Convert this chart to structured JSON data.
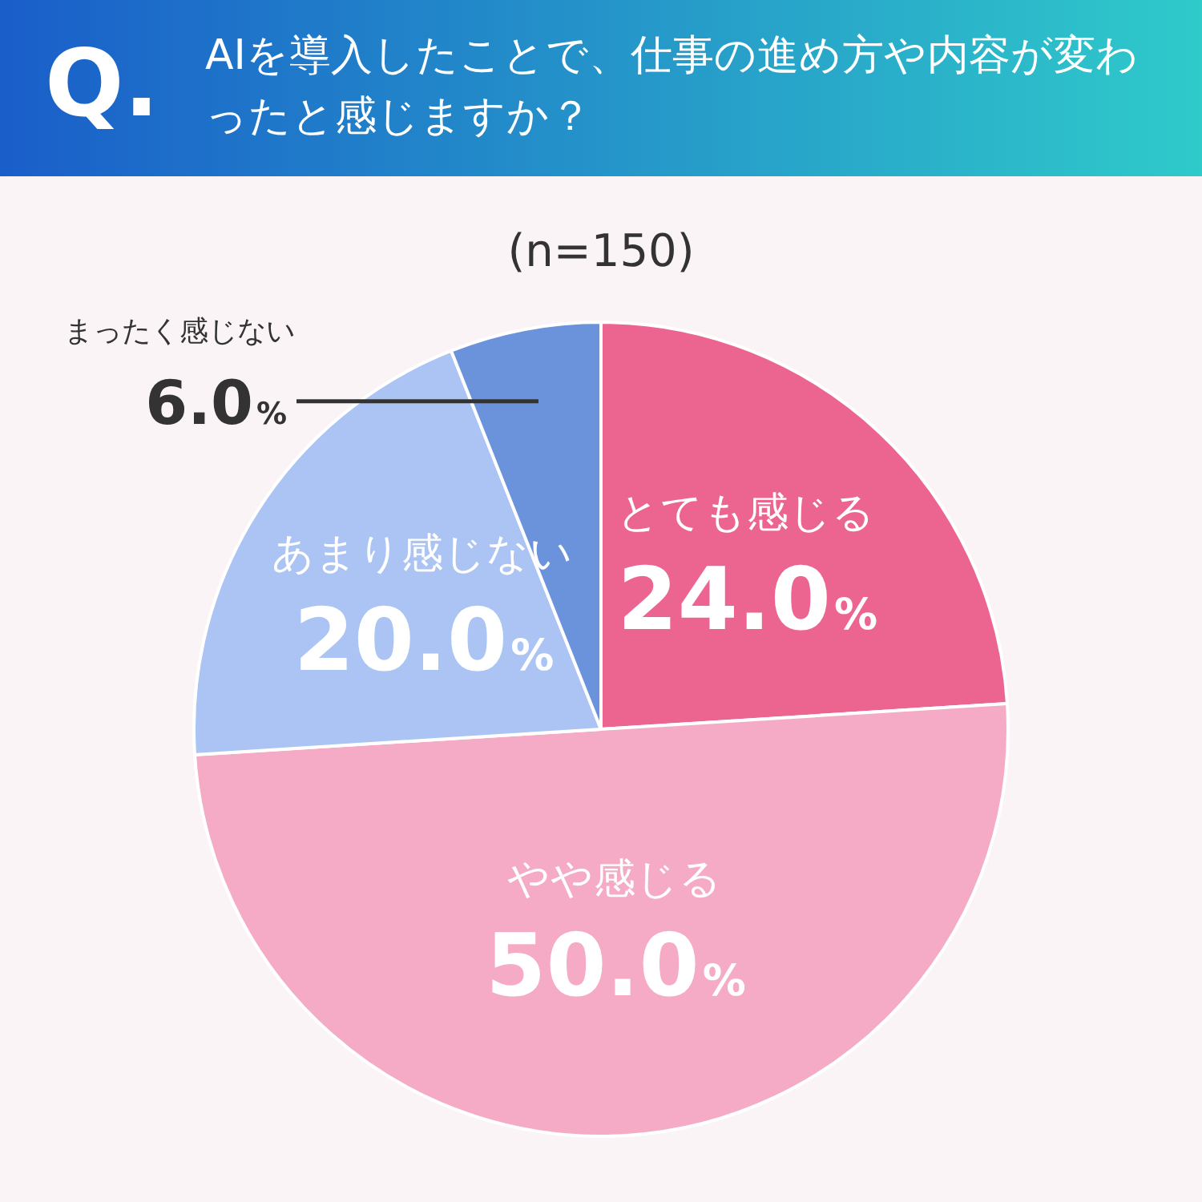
{
  "chart_data": {
    "type": "pie",
    "title": "AIを導入したことで、仕事の進め方や内容が変わったと感じますか？",
    "subtitle": "(n=150)",
    "annotations": [
      "Q."
    ],
    "categories": [
      "とても感じる",
      "やや感じる",
      "あまり感じない",
      "まったく感じない"
    ],
    "values": [
      24.0,
      50.0,
      20.0,
      6.0
    ],
    "colors": [
      "#ec6591",
      "#f5abc5",
      "#abc4f3",
      "#6a93dc"
    ],
    "value_labels": [
      "24.0%",
      "50.0%",
      "20.0%",
      "6.0%"
    ],
    "legend": false
  }
}
